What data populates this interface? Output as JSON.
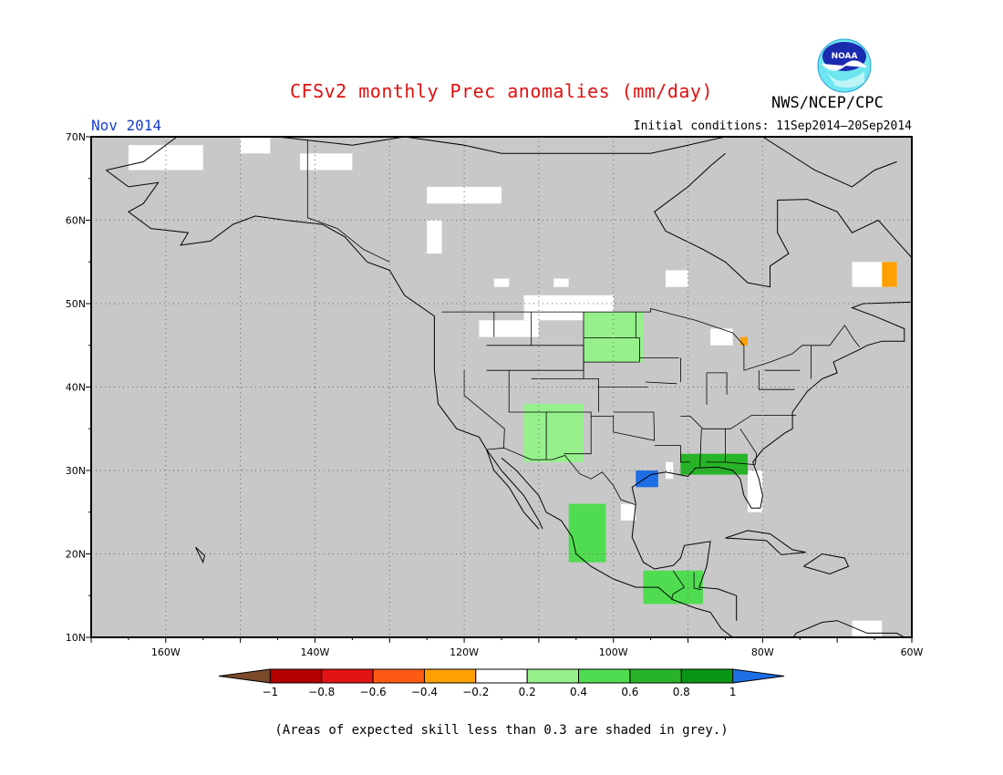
{
  "header": {
    "title": "CFSv2 monthly Prec anomalies (mm/day)",
    "agency": "NWS/NCEP/CPC",
    "logo_text": "NOAA",
    "month": "Nov 2014",
    "initial_conditions": "Initial conditions: 11Sep2014—20Sep2014"
  },
  "footnote": "(Areas of expected skill less than 0.3 are shaded in grey.)",
  "map": {
    "lat_labels": [
      "70N",
      "60N",
      "50N",
      "40N",
      "30N",
      "20N",
      "10N"
    ],
    "lon_labels": [
      "160W",
      "140W",
      "120W",
      "100W",
      "80W",
      "60W"
    ],
    "lon_range": [
      -170,
      -60
    ],
    "lat_range": [
      10,
      70
    ],
    "colors": {
      "no_skill": "#c8c8c8",
      "neutral": "#ffffff",
      "coast": "#000000"
    }
  },
  "colorbar": {
    "labels": [
      "−1",
      "−0.8",
      "−0.6",
      "−0.4",
      "−0.2",
      "0.2",
      "0.4",
      "0.6",
      "0.8",
      "1"
    ],
    "colors": [
      "#7a4a2a",
      "#b40000",
      "#e01414",
      "#ff5a14",
      "#ffa000",
      "#ffffff",
      "#96f08c",
      "#50dc50",
      "#28b428",
      "#0a9614",
      "#1e6ee6"
    ]
  },
  "anomaly_regions": [
    {
      "label": "northern plains",
      "lon": [
        -104,
        -96
      ],
      "lat": [
        43,
        49
      ],
      "category": "0.4"
    },
    {
      "label": "southwest",
      "lon": [
        -112,
        -104
      ],
      "lat": [
        31,
        38
      ],
      "category": "0.4"
    },
    {
      "label": "gulf coast",
      "lon": [
        -91,
        -82
      ],
      "lat": [
        29.5,
        32
      ],
      "category": "0.8"
    },
    {
      "label": "texas coast",
      "lon": [
        -97,
        -94
      ],
      "lat": [
        28,
        30
      ],
      "category": "1"
    },
    {
      "label": "western mexico",
      "lon": [
        -106,
        -101
      ],
      "lat": [
        19,
        26
      ],
      "category": "0.6"
    },
    {
      "label": "southern mexico",
      "lon": [
        -96,
        -88
      ],
      "lat": [
        14,
        18
      ],
      "category": "0.6"
    },
    {
      "label": "newfoundland",
      "lon": [
        -64,
        -62
      ],
      "lat": [
        52,
        55
      ],
      "category": "-0.4"
    },
    {
      "label": "great lakes",
      "lon": [
        -83,
        -82
      ],
      "lat": [
        45,
        46
      ],
      "category": "-0.4"
    }
  ]
}
